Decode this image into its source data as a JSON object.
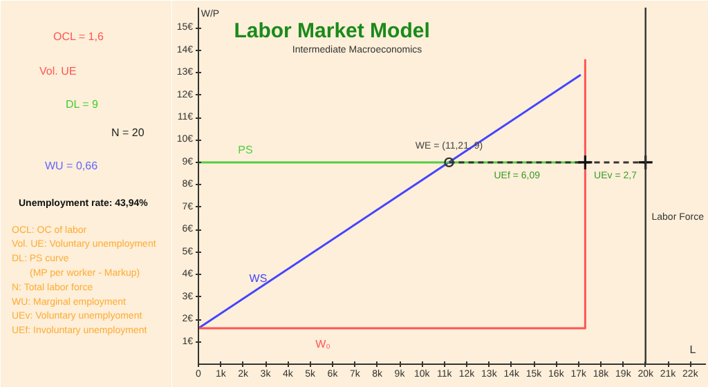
{
  "chart_data": {
    "type": "line",
    "title": "Labor Market Model",
    "subtitle": "Intermediate Macroeconomics",
    "xlabel": "L",
    "ylabel": "W/P",
    "xlim": [
      0,
      22.7
    ],
    "ylim": [
      0,
      15.9
    ],
    "xticks": [
      {
        "value": 0,
        "label": "0"
      },
      {
        "value": 1,
        "label": "1k"
      },
      {
        "value": 2,
        "label": "2k"
      },
      {
        "value": 3,
        "label": "3k"
      },
      {
        "value": 4,
        "label": "4k"
      },
      {
        "value": 5,
        "label": "5k"
      },
      {
        "value": 6,
        "label": "6k"
      },
      {
        "value": 7,
        "label": "7k"
      },
      {
        "value": 8,
        "label": "8k"
      },
      {
        "value": 9,
        "label": "9k"
      },
      {
        "value": 10,
        "label": "10k"
      },
      {
        "value": 11,
        "label": "11k"
      },
      {
        "value": 12,
        "label": "12k"
      },
      {
        "value": 13,
        "label": "13k"
      },
      {
        "value": 14,
        "label": "14k"
      },
      {
        "value": 15,
        "label": "15k"
      },
      {
        "value": 16,
        "label": "16k"
      },
      {
        "value": 17,
        "label": "17k"
      },
      {
        "value": 18,
        "label": "18k"
      },
      {
        "value": 19,
        "label": "19k"
      },
      {
        "value": 20,
        "label": "20k"
      },
      {
        "value": 21,
        "label": "21k"
      },
      {
        "value": 22,
        "label": "22k"
      }
    ],
    "yticks": [
      {
        "value": 1,
        "label": "1€"
      },
      {
        "value": 2,
        "label": "2€"
      },
      {
        "value": 3,
        "label": "3€"
      },
      {
        "value": 4,
        "label": "4€"
      },
      {
        "value": 5,
        "label": "5€"
      },
      {
        "value": 6,
        "label": "6€"
      },
      {
        "value": 7,
        "label": "7€"
      },
      {
        "value": 8,
        "label": "8€"
      },
      {
        "value": 9,
        "label": "9€"
      },
      {
        "value": 10,
        "label": "10€"
      },
      {
        "value": 11,
        "label": "11€"
      },
      {
        "value": 12,
        "label": "12€"
      },
      {
        "value": 13,
        "label": "13€"
      },
      {
        "value": 14,
        "label": "14€"
      },
      {
        "value": 15,
        "label": "15€"
      }
    ],
    "grid": false,
    "series": [
      {
        "name": "WS",
        "color": "#4444ff",
        "x": [
          0,
          17.1
        ],
        "values": [
          1.6,
          12.9
        ]
      },
      {
        "name": "PS",
        "color": "#55cc44",
        "x": [
          0,
          17.3
        ],
        "values": [
          9,
          9
        ]
      },
      {
        "name": "W₀",
        "color": "#ff5555",
        "x": [
          0,
          17.3,
          17.3
        ],
        "values": [
          1.6,
          1.6,
          13.6
        ]
      },
      {
        "color": "#333333",
        "x": [
          11.21,
          20
        ],
        "values": [
          9,
          9
        ],
        "line_style": "dashed"
      },
      {
        "type": "scatter",
        "color": "#333333",
        "x": [
          11.21
        ],
        "values": [
          9
        ],
        "marker": "circle"
      },
      {
        "type": "scatter",
        "color": "#111111",
        "x": [
          17.3,
          20
        ],
        "values": [
          9,
          9
        ],
        "marker": "cross"
      }
    ],
    "ref_lines": [
      {
        "axis": "x",
        "value": 20,
        "label": "Labor Force",
        "color": "#333333"
      }
    ],
    "annotations": [
      {
        "text": "WE = (11,21, 9)",
        "x": 11.21,
        "y": 9
      },
      {
        "text": "UEf = 6,09",
        "x": 14.25,
        "y": 9
      },
      {
        "text": "UEv = 2,7",
        "x": 18.65,
        "y": 9
      },
      "OCL = 1,6",
      "Vol. UE",
      "DL = 9",
      "N = 20",
      "WU = 0,66",
      "Unemployment rate: 43,94%",
      "OCL: OC of labor",
      "Vol. UE: Voluntary unemployment",
      "DL: PS curve",
      "(MP per worker - Markup)",
      "N: Total labor force",
      "WU: Marginal employment",
      "UEv: Voluntary unemplyoment",
      "UEf: Involuntary unemployment"
    ]
  }
}
